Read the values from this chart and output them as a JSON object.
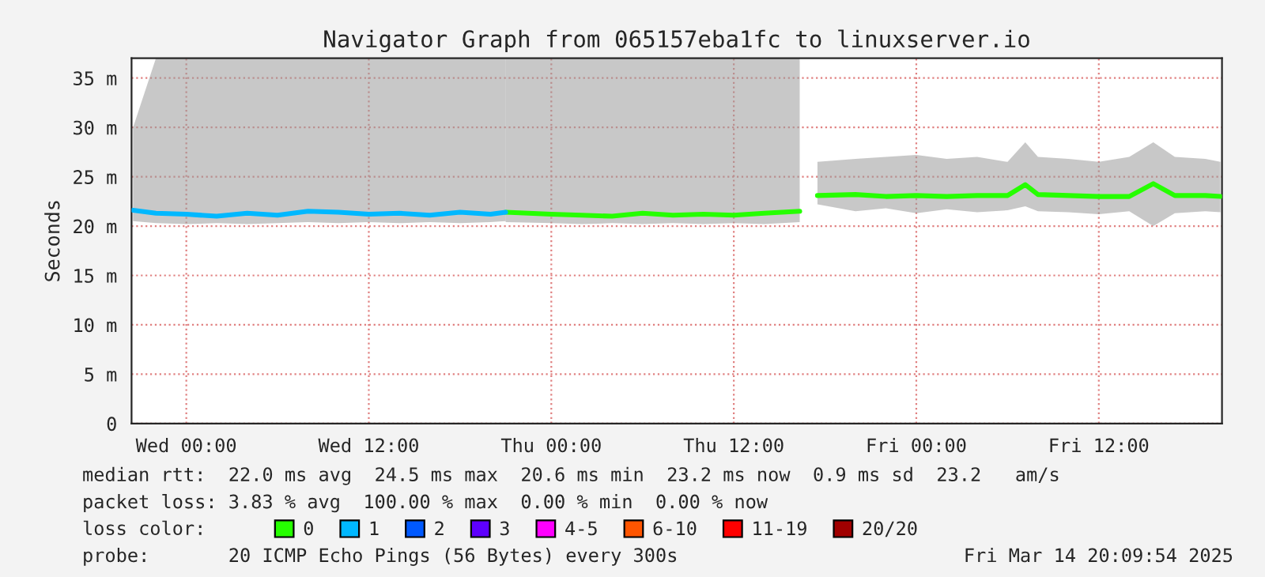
{
  "chart_data": {
    "type": "line",
    "title": "Navigator Graph from 065157eba1fc to linuxserver.io",
    "ylabel": "Seconds",
    "xlim": [
      "2025-03-11T20:24",
      "2025-03-14T20:06"
    ],
    "xticks": [
      {
        "value": "2025-03-12T00:00",
        "label": "Wed 00:00"
      },
      {
        "value": "2025-03-12T12:00",
        "label": "Wed 12:00"
      },
      {
        "value": "2025-03-13T00:00",
        "label": "Thu 00:00"
      },
      {
        "value": "2025-03-13T12:00",
        "label": "Thu 12:00"
      },
      {
        "value": "2025-03-14T00:00",
        "label": "Fri 00:00"
      },
      {
        "value": "2025-03-14T12:00",
        "label": "Fri 12:00"
      }
    ],
    "ylim": [
      0,
      37
    ],
    "yticks": [
      0,
      {
        "value": 5,
        "label": "5 m"
      },
      {
        "value": 10,
        "label": "10 m"
      },
      {
        "value": 15,
        "label": "15 m"
      },
      {
        "value": 20,
        "label": "20 m"
      },
      {
        "value": 25,
        "label": "25 m"
      },
      {
        "value": 30,
        "label": "30 m"
      },
      {
        "value": 35,
        "label": "35 m"
      }
    ],
    "grid": true,
    "legend": "bottom",
    "legend_title": "loss color:",
    "series": [
      {
        "name": "0",
        "color": "#26ff00",
        "x": [
          "2025-03-12T21:00",
          "2025-03-13T00:00",
          "2025-03-13T02:00",
          "2025-03-13T04:00",
          "2025-03-13T06:00",
          "2025-03-13T08:00",
          "2025-03-13T10:00",
          "2025-03-13T12:00",
          "2025-03-13T14:00",
          "2025-03-13T16:20",
          "2025-03-13T17:00",
          "2025-03-13T17:30",
          "2025-03-13T20:00",
          "2025-03-13T22:00",
          "2025-03-14T00:00",
          "2025-03-14T02:00",
          "2025-03-14T04:00",
          "2025-03-14T06:00",
          "2025-03-14T07:10",
          "2025-03-14T08:00",
          "2025-03-14T10:00",
          "2025-03-14T12:00",
          "2025-03-14T14:00",
          "2025-03-14T15:35",
          "2025-03-14T17:00",
          "2025-03-14T19:00",
          "2025-03-14T20:00"
        ],
        "values": [
          21.4,
          21.2,
          21.1,
          21.0,
          21.3,
          21.1,
          21.2,
          21.1,
          21.3,
          21.5,
          null,
          23.1,
          23.2,
          23.0,
          23.1,
          23.0,
          23.1,
          23.1,
          24.2,
          23.2,
          23.1,
          23.0,
          23.0,
          24.3,
          23.1,
          23.1,
          23.0
        ],
        "lower": [
          20.4,
          20.3,
          20.2,
          20.3,
          20.2,
          20.3,
          20.2,
          20.3,
          20.2,
          20.4,
          null,
          22.2,
          21.5,
          21.8,
          21.3,
          21.7,
          21.4,
          21.6,
          22.0,
          21.5,
          21.4,
          21.2,
          21.5,
          20.0,
          21.3,
          21.5,
          21.4
        ],
        "upper": [
          37,
          37,
          37,
          37,
          37,
          37,
          37,
          37,
          37,
          37,
          null,
          26.5,
          26.8,
          27.0,
          27.2,
          26.8,
          27.0,
          26.5,
          28.5,
          27.0,
          26.8,
          26.5,
          27.0,
          28.5,
          27.0,
          26.8,
          26.5
        ]
      },
      {
        "name": "1",
        "color": "#00b8ff",
        "x": [
          "2025-03-11T20:30",
          "2025-03-11T22:00",
          "2025-03-12T00:00",
          "2025-03-12T02:00",
          "2025-03-12T04:00",
          "2025-03-12T06:00",
          "2025-03-12T08:00",
          "2025-03-12T10:00",
          "2025-03-12T12:00",
          "2025-03-12T14:00",
          "2025-03-12T16:00",
          "2025-03-12T18:00",
          "2025-03-12T20:00",
          "2025-03-12T21:00"
        ],
        "values": [
          21.6,
          21.3,
          21.2,
          21.0,
          21.3,
          21.1,
          21.5,
          21.4,
          21.2,
          21.3,
          21.1,
          21.4,
          21.2,
          21.4
        ],
        "lower": [
          20.5,
          20.3,
          20.2,
          20.3,
          20.2,
          20.3,
          20.4,
          20.3,
          20.4,
          20.3,
          20.4,
          20.3,
          20.4,
          20.5
        ],
        "upper": [
          30,
          37,
          37,
          37,
          37,
          37,
          37,
          37,
          37,
          37,
          37,
          37,
          37,
          37
        ]
      },
      {
        "name": "2",
        "color": "#0059ff"
      },
      {
        "name": "3",
        "color": "#5e00ff"
      },
      {
        "name": "4-5",
        "color": "#ff00ff"
      },
      {
        "name": "6-10",
        "color": "#ff5500"
      },
      {
        "name": "11-19",
        "color": "#ff0000"
      },
      {
        "name": "20/20",
        "color": "#a10000"
      }
    ],
    "annotations": [
      "median rtt:  22.0 ms avg  24.5 ms max  20.6 ms min  23.2 ms now  0.9 ms sd  23.2   am/s",
      "packet loss: 3.83 % avg  100.00 % max  0.00 % min  0.00 % now",
      "probe:       20 ICMP Echo Pings (56 Bytes) every 300s",
      "Fri Mar 14 20:09:54 2025"
    ]
  }
}
